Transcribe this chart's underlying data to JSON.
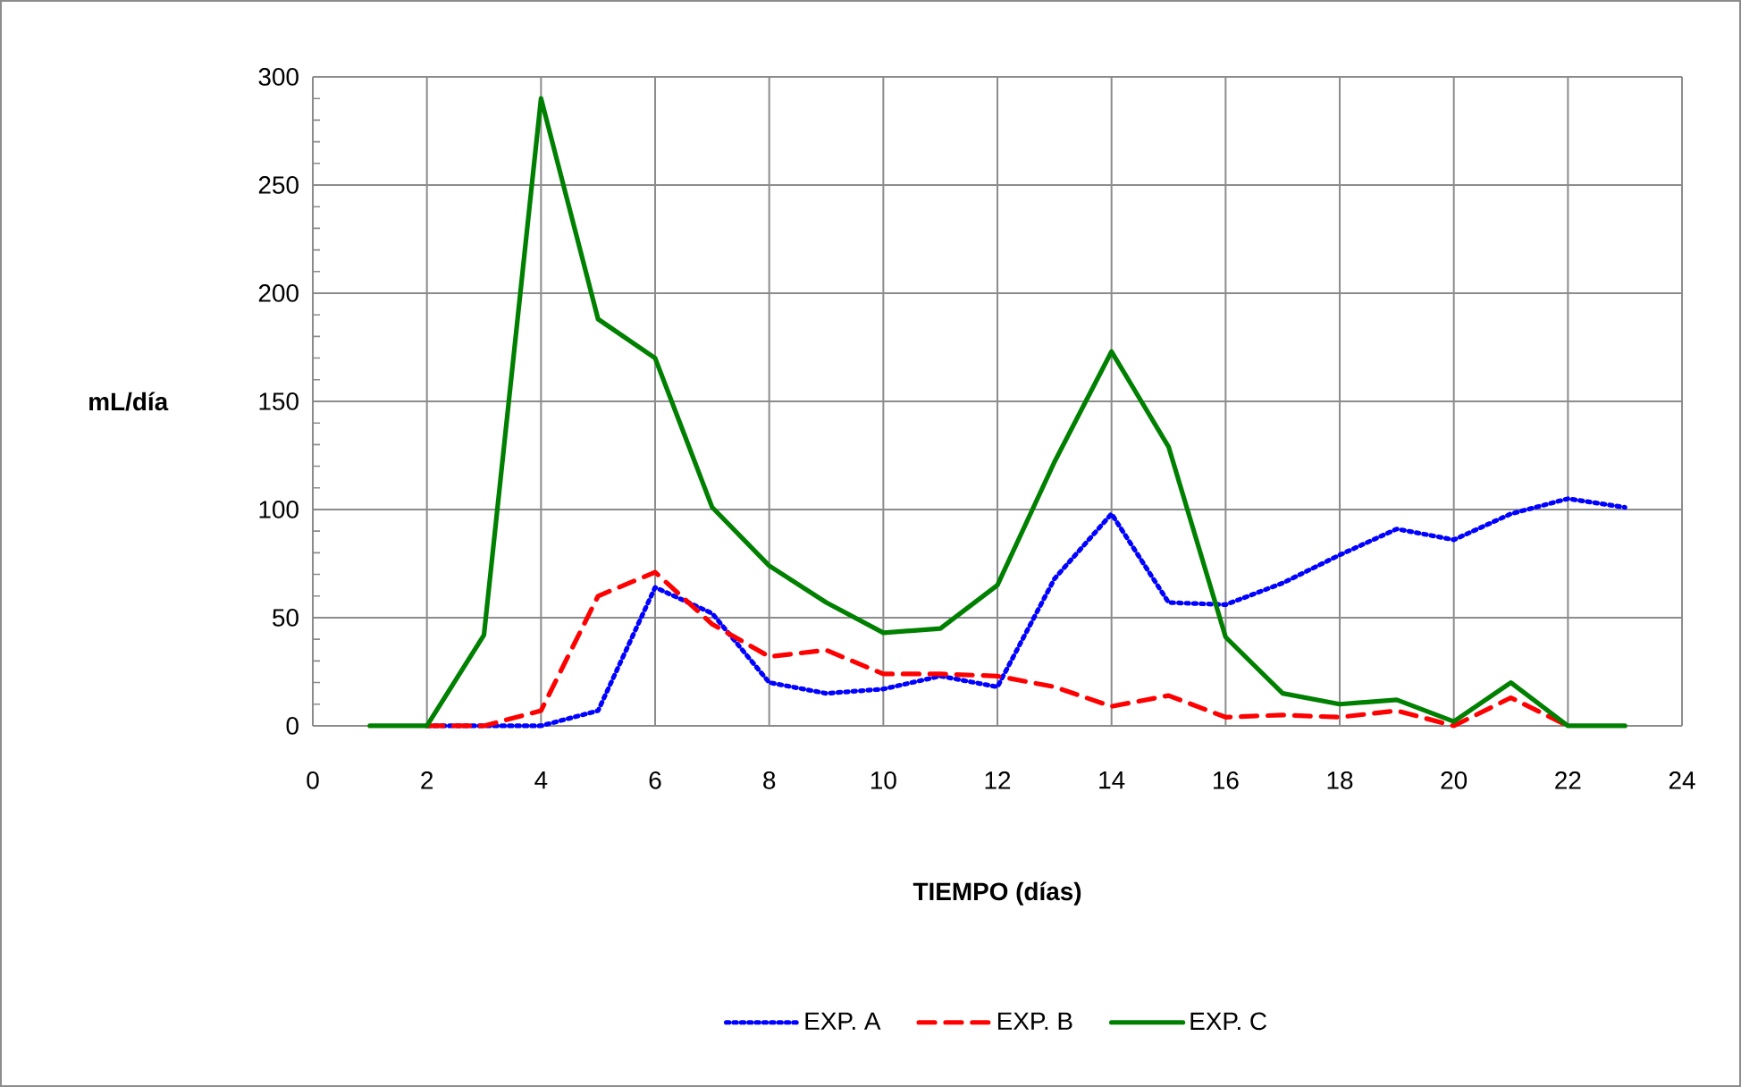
{
  "chart_data": {
    "type": "line",
    "xlabel": "TIEMPO (días)",
    "ylabel": "mL/día",
    "xlim": [
      0,
      24
    ],
    "xticks": [
      0,
      2,
      4,
      6,
      8,
      10,
      12,
      14,
      16,
      18,
      20,
      22,
      24
    ],
    "ylim": [
      0,
      300
    ],
    "yticks": [
      0,
      50,
      100,
      150,
      200,
      250,
      300
    ],
    "grid": true,
    "legend": "bottom",
    "marker": "none",
    "series": [
      {
        "name": "EXP. A",
        "color": "#0000ff",
        "line_style": "dotted",
        "x": [
          2,
          3,
          4,
          5,
          6,
          7,
          8,
          9,
          10,
          11,
          12,
          13,
          14,
          15,
          16,
          17,
          18,
          19,
          20,
          21,
          22,
          23
        ],
        "values": [
          0,
          0,
          0,
          7,
          64,
          52,
          20,
          15,
          17,
          23,
          18,
          68,
          98,
          57,
          56,
          66,
          79,
          91,
          86,
          98,
          105,
          101
        ]
      },
      {
        "name": "EXP. B",
        "color": "#ff0000",
        "line_style": "dashed",
        "x": [
          2,
          3,
          4,
          5,
          6,
          7,
          8,
          9,
          10,
          11,
          12,
          13,
          14,
          15,
          16,
          17,
          18,
          19,
          20,
          21,
          22
        ],
        "values": [
          0,
          0,
          7,
          60,
          71,
          47,
          32,
          35,
          24,
          24,
          23,
          18,
          9,
          14,
          4,
          5,
          4,
          7,
          0,
          13,
          0
        ]
      },
      {
        "name": "EXP. C",
        "color": "#008000",
        "line_style": "solid",
        "x": [
          1,
          2,
          3,
          4,
          5,
          6,
          7,
          8,
          9,
          10,
          11,
          12,
          13,
          14,
          15,
          16,
          17,
          18,
          19,
          20,
          21,
          22,
          23
        ],
        "values": [
          0,
          0,
          42,
          290,
          188,
          170,
          101,
          74,
          57,
          43,
          45,
          65,
          122,
          173,
          129,
          41,
          15,
          10,
          12,
          2,
          20,
          0,
          0
        ]
      }
    ]
  }
}
